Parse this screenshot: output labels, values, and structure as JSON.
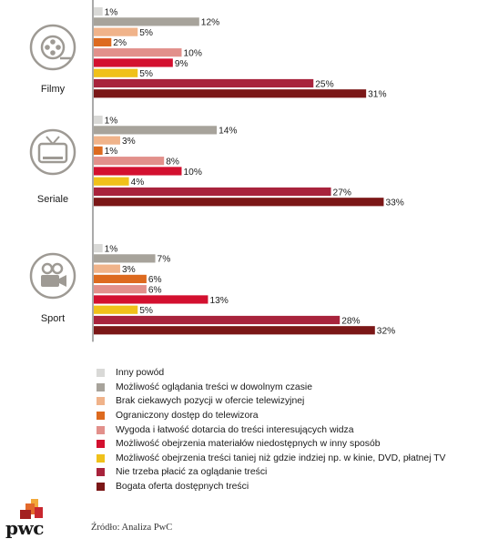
{
  "chart_data": {
    "type": "bar",
    "orientation": "horizontal",
    "categories": [
      "Filmy",
      "Seriale",
      "Sport"
    ],
    "value_suffix": "%",
    "series": [
      {
        "name": "Inny powód",
        "color": "#d9d9d7",
        "values": [
          1,
          1,
          1
        ]
      },
      {
        "name": "Możliwość oglądania treści w dowolnym czasie",
        "color": "#a7a39b",
        "values": [
          12,
          14,
          7
        ]
      },
      {
        "name": "Brak ciekawych pozycji w ofercie telewizyjnej",
        "color": "#f0b38a",
        "values": [
          5,
          3,
          3
        ]
      },
      {
        "name": "Ograniczony dostęp do telewizora",
        "color": "#dd6a1f",
        "values": [
          2,
          1,
          6
        ]
      },
      {
        "name": "Wygoda i łatwość dotarcia do treści interesujących widza",
        "color": "#e2908b",
        "values": [
          10,
          8,
          6
        ]
      },
      {
        "name": "Możliwość obejrzenia materiałów niedostępnych w inny sposób",
        "color": "#d3102f",
        "values": [
          9,
          10,
          13
        ]
      },
      {
        "name": "Możliwość obejrzenia treści taniej niż gdzie indziej np. w kinie, DVD, płatnej TV",
        "color": "#f0c11a",
        "values": [
          5,
          4,
          5
        ]
      },
      {
        "name": "Nie trzeba płacić za oglądanie treści",
        "color": "#a8233c",
        "values": [
          25,
          27,
          28
        ]
      },
      {
        "name": "Bogata oferta dostępnych treści",
        "color": "#7b1717",
        "values": [
          31,
          33,
          32
        ]
      }
    ],
    "icons": [
      "film-reel-icon",
      "television-icon",
      "video-camera-icon"
    ],
    "legend_position": "bottom",
    "grid": false
  },
  "brand": {
    "name": "pwc",
    "logo_colors": [
      "#f2a93a",
      "#e3692b",
      "#c8272f",
      "#a32020"
    ]
  },
  "source_note": "Źródło: Analiza PwC"
}
